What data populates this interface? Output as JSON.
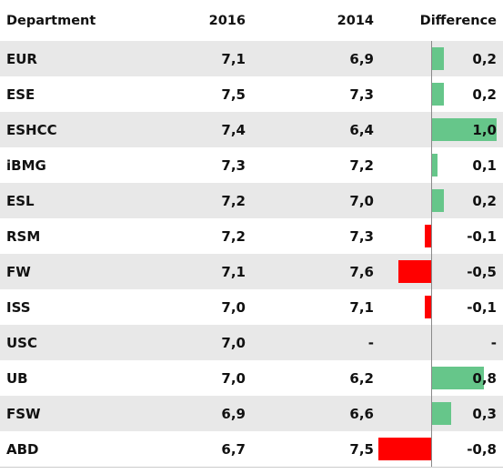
{
  "columns": {
    "department": "Department",
    "y2016": "2016",
    "y2014": "2014",
    "difference": "Difference"
  },
  "colors": {
    "positive": "#66c68a",
    "negative": "#ff0000",
    "row_shade": "#e8e8e8"
  },
  "diff_scale_max": 1.0,
  "rows": [
    {
      "department": "EUR",
      "y2016": "7,1",
      "y2014": "6,9",
      "difference": "0,2",
      "diff_value": 0.2
    },
    {
      "department": "ESE",
      "y2016": "7,5",
      "y2014": "7,3",
      "difference": "0,2",
      "diff_value": 0.2
    },
    {
      "department": "ESHCC",
      "y2016": "7,4",
      "y2014": "6,4",
      "difference": "1,0",
      "diff_value": 1.0
    },
    {
      "department": "iBMG",
      "y2016": "7,3",
      "y2014": "7,2",
      "difference": "0,1",
      "diff_value": 0.1
    },
    {
      "department": "ESL",
      "y2016": "7,2",
      "y2014": "7,0",
      "difference": "0,2",
      "diff_value": 0.2
    },
    {
      "department": "RSM",
      "y2016": "7,2",
      "y2014": "7,3",
      "difference": "-0,1",
      "diff_value": -0.1
    },
    {
      "department": "FW",
      "y2016": "7,1",
      "y2014": "7,6",
      "difference": "-0,5",
      "diff_value": -0.5
    },
    {
      "department": "ISS",
      "y2016": "7,0",
      "y2014": "7,1",
      "difference": "-0,1",
      "diff_value": -0.1
    },
    {
      "department": "USC",
      "y2016": "7,0",
      "y2014": "-",
      "difference": "-",
      "diff_value": null
    },
    {
      "department": "UB",
      "y2016": "7,0",
      "y2014": "6,2",
      "difference": "0,8",
      "diff_value": 0.8
    },
    {
      "department": "FSW",
      "y2016": "6,9",
      "y2014": "6,6",
      "difference": "0,3",
      "diff_value": 0.3
    },
    {
      "department": "ABD",
      "y2016": "6,7",
      "y2014": "7,5",
      "difference": "-0,8",
      "diff_value": -0.8
    }
  ]
}
